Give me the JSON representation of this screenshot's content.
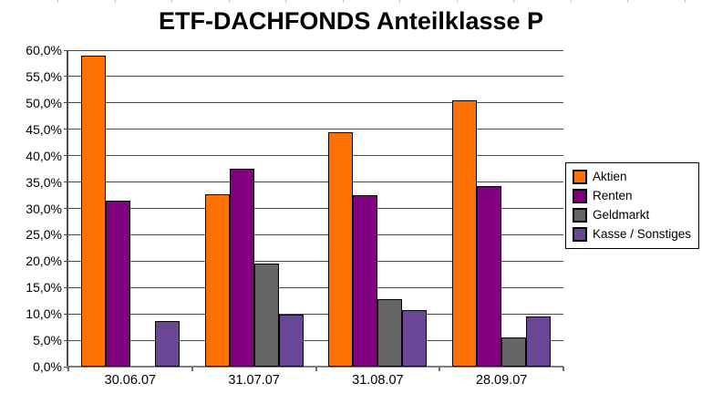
{
  "chart_data": {
    "type": "bar",
    "title": "ETF-DACHFONDS Anteilklasse P",
    "categories": [
      "30.06.07",
      "31.07.07",
      "31.08.07",
      "28.09.07"
    ],
    "series": [
      {
        "name": "Aktien",
        "color": "#ff7100",
        "values": [
          59.0,
          32.7,
          44.4,
          50.5
        ]
      },
      {
        "name": "Renten",
        "color": "#800080",
        "values": [
          31.5,
          37.6,
          32.5,
          34.3
        ]
      },
      {
        "name": "Geldmarkt",
        "color": "#656565",
        "values": [
          0.0,
          19.5,
          12.8,
          5.6
        ]
      },
      {
        "name": "Kasse / Sonstiges",
        "color": "#6a4796",
        "values": [
          8.6,
          9.9,
          10.7,
          9.5
        ]
      }
    ],
    "ylim": [
      0,
      60
    ],
    "ytick_step": 5,
    "y_tick_labels": [
      "60,0%",
      "55,0%",
      "50,0%",
      "45,0%",
      "40,0%",
      "35,0%",
      "30,0%",
      "25,0%",
      "20,0%",
      "15,0%",
      "10,0%",
      "5,0%",
      "0,0%"
    ],
    "xlabel": "",
    "ylabel": "",
    "grid": true,
    "grid_color": "#4a4a4a",
    "axis_color": "#7f7f7f",
    "bar_border_color": "#000000",
    "legend_position": "right"
  }
}
